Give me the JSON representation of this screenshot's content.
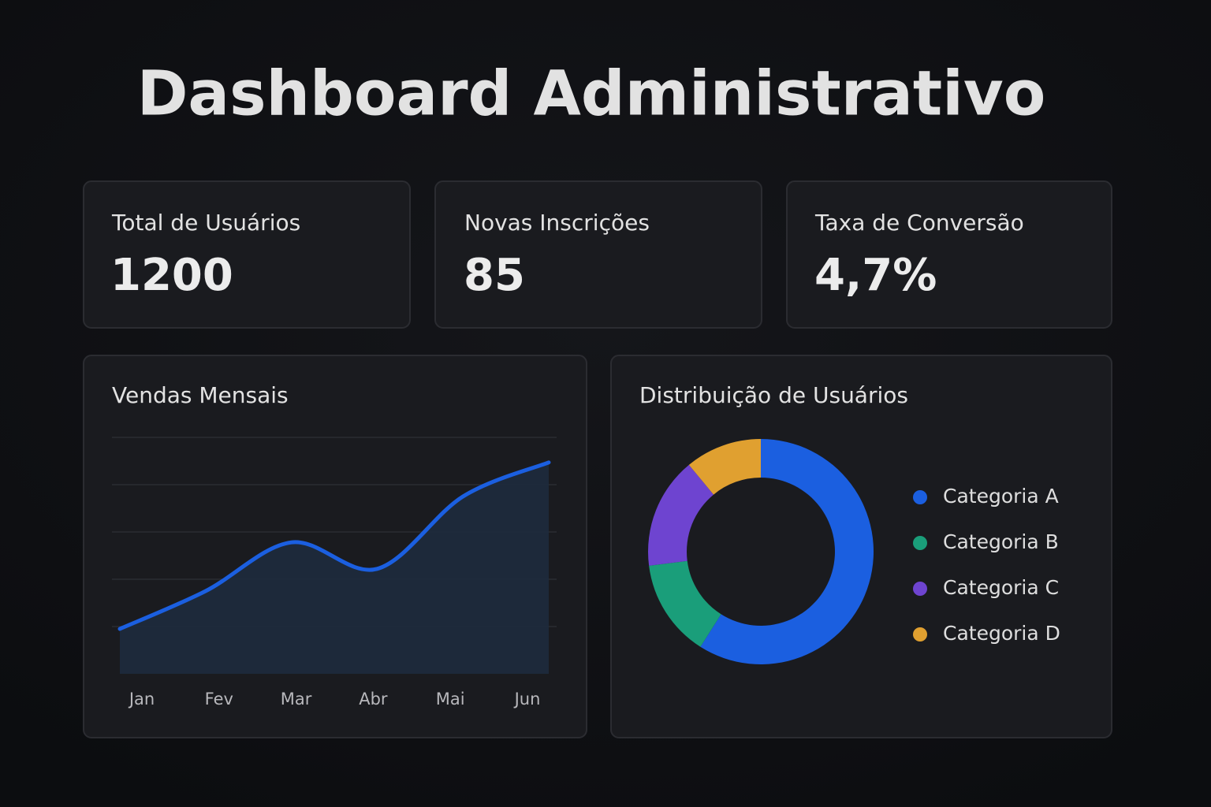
{
  "title": "Dashboard Administrativo",
  "cards": [
    {
      "label": "Total de Usuários",
      "value": "1200"
    },
    {
      "label": "Novas Inscrições",
      "value": "85"
    },
    {
      "label": "Taxa de Conversão",
      "value": "4,7%"
    }
  ],
  "chart_data": [
    {
      "type": "line",
      "title": "Vendas Mensais",
      "categories": [
        "Jan",
        "Fev",
        "Mar",
        "Abr",
        "Mai",
        "Jun"
      ],
      "values": [
        0.95,
        1.75,
        2.78,
        2.22,
        3.75,
        4.47
      ],
      "color": "#1b5fe0",
      "ylim": [
        0,
        5
      ],
      "yticks": [
        1,
        2,
        3,
        4,
        5
      ],
      "grid": true
    },
    {
      "type": "pie",
      "title": "Distribuição de Usuários",
      "categories": [
        "Categoria A",
        "Categoria B",
        "Categoria C",
        "Categoria D"
      ],
      "values": [
        59,
        14,
        16,
        11
      ],
      "colors": [
        "#1b5fe0",
        "#1a9e7a",
        "#6e44d0",
        "#e0a030"
      ]
    }
  ]
}
